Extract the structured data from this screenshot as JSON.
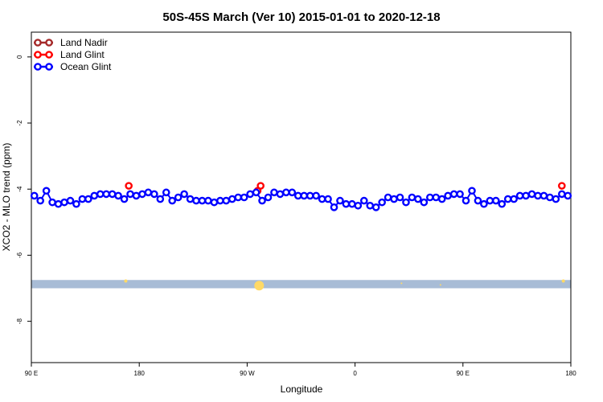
{
  "chart_data": {
    "type": "line",
    "title": "50S-45S March (Ver 10)   2015-01-01 to 2020-12-18",
    "xlabel": "Longitude",
    "ylabel": "XCO2 - MLO trend (ppm)",
    "xlim": [
      90,
      450
    ],
    "ylim": [
      -9.25,
      0.75
    ],
    "x_ticks": [
      {
        "value": 90,
        "label": "90 E"
      },
      {
        "value": 162,
        "label": "180"
      },
      {
        "value": 234,
        "label": "90 W"
      },
      {
        "value": 306,
        "label": "0"
      },
      {
        "value": 378,
        "label": "90 E"
      },
      {
        "value": 450,
        "label": "180"
      }
    ],
    "y_ticks": [
      {
        "value": 0,
        "label": "0"
      },
      {
        "value": -2,
        "label": "-2"
      },
      {
        "value": -4,
        "label": "-4"
      },
      {
        "value": -6,
        "label": "-6"
      },
      {
        "value": -8,
        "label": "-8"
      }
    ],
    "grid": false,
    "legend_position": "top-left",
    "series": [
      {
        "name": "Land Nadir",
        "color": "#a52a2a",
        "x": [],
        "y": []
      },
      {
        "name": "Land Glint",
        "color": "#ff0000",
        "x": [
          155,
          241,
          243,
          444
        ],
        "y": [
          -3.9,
          -4.05,
          -3.9,
          -3.9
        ]
      },
      {
        "name": "Ocean Glint",
        "color": "#0000ff",
        "x": [
          92,
          96,
          100,
          104,
          108,
          112,
          116,
          120,
          124,
          128,
          132,
          136,
          140,
          144,
          148,
          152,
          156,
          160,
          164,
          168,
          172,
          176,
          180,
          184,
          188,
          192,
          196,
          200,
          204,
          208,
          212,
          216,
          220,
          224,
          228,
          232,
          236,
          240,
          244,
          248,
          252,
          256,
          260,
          264,
          268,
          272,
          276,
          280,
          284,
          288,
          292,
          296,
          300,
          304,
          308,
          312,
          316,
          320,
          324,
          328,
          332,
          336,
          340,
          344,
          348,
          352,
          356,
          360,
          364,
          368,
          372,
          376,
          380,
          384,
          388,
          392,
          396,
          400,
          404,
          408,
          412,
          416,
          420,
          424,
          428,
          432,
          436,
          440,
          444,
          448
        ],
        "y": [
          -4.2,
          -4.35,
          -4.05,
          -4.4,
          -4.45,
          -4.4,
          -4.35,
          -4.45,
          -4.3,
          -4.3,
          -4.2,
          -4.15,
          -4.15,
          -4.15,
          -4.2,
          -4.3,
          -4.15,
          -4.2,
          -4.15,
          -4.1,
          -4.15,
          -4.3,
          -4.1,
          -4.35,
          -4.25,
          -4.15,
          -4.3,
          -4.35,
          -4.35,
          -4.35,
          -4.4,
          -4.35,
          -4.35,
          -4.3,
          -4.25,
          -4.25,
          -4.15,
          -4.1,
          -4.35,
          -4.25,
          -4.1,
          -4.15,
          -4.1,
          -4.1,
          -4.2,
          -4.2,
          -4.2,
          -4.2,
          -4.3,
          -4.3,
          -4.55,
          -4.35,
          -4.45,
          -4.45,
          -4.5,
          -4.35,
          -4.5,
          -4.55,
          -4.4,
          -4.25,
          -4.3,
          -4.25,
          -4.4,
          -4.25,
          -4.3,
          -4.4,
          -4.25,
          -4.25,
          -4.3,
          -4.2,
          -4.15,
          -4.15,
          -4.35,
          -4.05,
          -4.35,
          -4.45,
          -4.35,
          -4.35,
          -4.45,
          -4.3,
          -4.3,
          -4.2,
          -4.2,
          -4.15,
          -4.2,
          -4.2,
          -4.25,
          -4.3,
          -4.15,
          -4.2
        ]
      }
    ],
    "land_band": {
      "y_range": [
        -7.0,
        -6.75
      ],
      "color": "#a8bcd6",
      "marker_color": "#ffd966",
      "markers": [
        {
          "x": 153,
          "y": -6.78,
          "size": 2
        },
        {
          "x": 242,
          "y": -6.92,
          "size": 6
        },
        {
          "x": 337,
          "y": -6.85,
          "size": 1
        },
        {
          "x": 363,
          "y": -6.9,
          "size": 1
        },
        {
          "x": 445,
          "y": -6.78,
          "size": 2
        }
      ]
    }
  }
}
